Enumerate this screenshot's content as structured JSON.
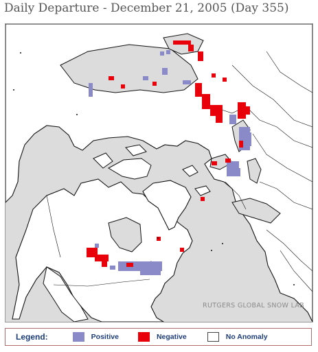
{
  "title": "Daily Departure - December 21, 2005 (Day 355)",
  "credit": "RUTGERS GLOBAL SNOW LAB",
  "legend": {
    "title": "Legend:",
    "items": [
      {
        "label": "Positive",
        "color": "#8a8ac8"
      },
      {
        "label": "Negative",
        "color": "#e8000b"
      },
      {
        "label": "No Anomaly",
        "color": "#ffffff"
      }
    ]
  },
  "colors": {
    "ocean": "#dcdcdc",
    "land": "#ffffff",
    "coast": "#111111",
    "positive": "#8a8ac8",
    "negative": "#e8000b"
  }
}
